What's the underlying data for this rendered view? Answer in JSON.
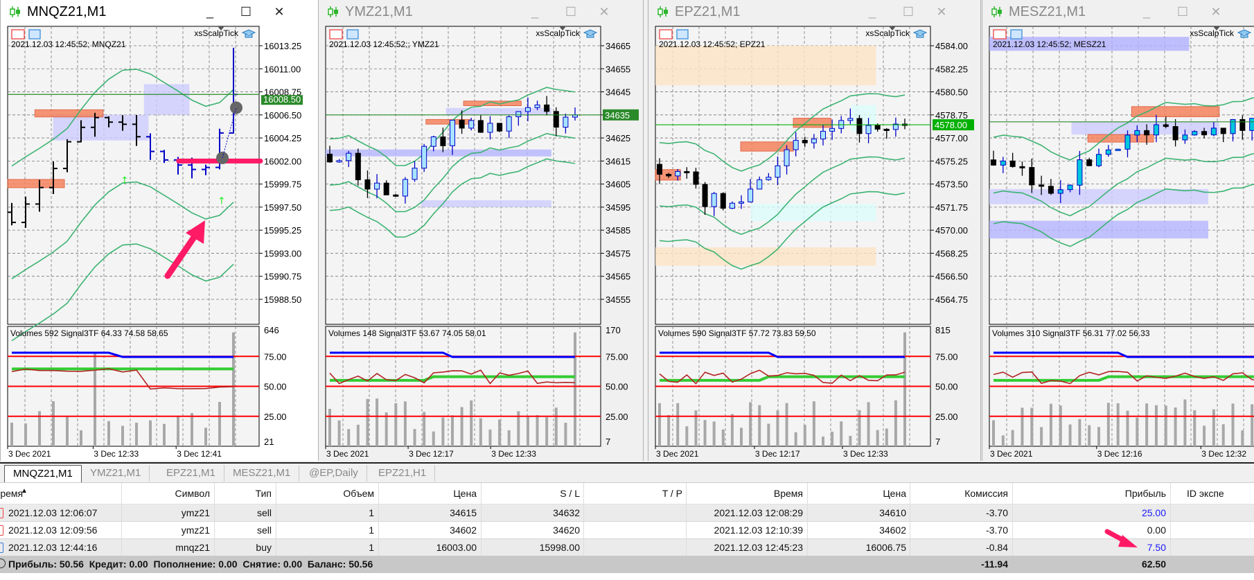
{
  "windows": [
    {
      "title": "MNQZ21,M1",
      "timestamp": "2021.12.03 12:45:52; MNQZ21",
      "indicator": "xsScalpTick",
      "price_ticks": [
        "16013.25",
        "16011.00",
        "16008.75",
        "16006.50",
        "16004.25",
        "16002.00",
        "15999.75",
        "15997.50",
        "15995.25",
        "15993.00",
        "15990.75",
        "15988.50"
      ],
      "current_price": "16008.50",
      "current_price_color": "#2a8a2a",
      "volumes_label": "Volumes 592 Signal3TF 64.33 74.58 58.65",
      "vol_ticks": [
        "646",
        "75.00",
        "50.00",
        "25.00",
        "21"
      ],
      "date_labels": [
        "3 Dec 2021",
        "3 Dec 12:33",
        "3 Dec 12:41"
      ]
    },
    {
      "title": "YMZ21,M1",
      "timestamp": "2021.12.03 12:45:52;; YMZ21",
      "indicator": "xsScalpTick",
      "price_ticks": [
        "34665",
        "34655",
        "34645",
        "34635",
        "34625",
        "34615",
        "34605",
        "34595",
        "34585",
        "34575",
        "34565",
        "34555"
      ],
      "current_price": "34635",
      "current_price_color": "#2a8a2a",
      "volumes_label": "Volumes 148 Signal3TF 53.67 74.05 58.01",
      "vol_ticks": [
        "170",
        "75.00",
        "50.00",
        "25.00",
        "7"
      ],
      "date_labels": [
        "3 Dec 2021",
        "3 Dec 12:17",
        "3 Dec 12:33"
      ]
    },
    {
      "title": "EPZ21,M1",
      "timestamp": "2021.12.03 12:45:52; EPZ21",
      "indicator": "xsScalpTick",
      "price_ticks": [
        "4584.00",
        "4582.25",
        "4580.50",
        "4578.75",
        "4577.00",
        "4575.25",
        "4573.50",
        "4571.75",
        "4570.00",
        "4568.25",
        "4566.50",
        "4564.75"
      ],
      "current_price": "4578.00",
      "current_price_color": "#00b000",
      "volumes_label": "Volumes 590 Signal3TF 57.72 73.83 59.50",
      "vol_ticks": [
        "815",
        "75.00",
        "50.00",
        "25.00",
        "7"
      ],
      "date_labels": [
        "3 Dec 2021",
        "3 Dec 12:17",
        "3 Dec 12:33"
      ]
    },
    {
      "title": "MESZ21,M1",
      "timestamp": "2021.12.03 12:45:52; MESZ21",
      "indicator": "xsScalpTick",
      "price_ticks": [],
      "current_price": "",
      "current_price_color": "#2a8a2a",
      "volumes_label": "Volumes 310 Signal3TF 56.31 77.02 56.33",
      "vol_ticks": [],
      "date_labels": [
        "3 Dec 2021",
        "3 Dec 12:16",
        "3 Dec 12:32"
      ]
    }
  ],
  "tabs": [
    "MNQZ21,M1",
    "YMZ21,M1",
    "EPZ21,M1",
    "MESZ21,M1",
    "@EP,Daily",
    "EPZ21,H1"
  ],
  "active_tab": "MNQZ21,M1",
  "table": {
    "columns": [
      "Время",
      "Символ",
      "Тип",
      "Объем",
      "Цена",
      "S / L",
      "T / P",
      "Время",
      "Цена",
      "Комиссия",
      "Прибыль",
      "ID экспе"
    ],
    "sort_indicator": "▲",
    "rows": [
      {
        "open_time": "2021.12.03 12:06:07",
        "symbol": "ymz21",
        "type": "sell",
        "volume": "1",
        "open_price": "34615",
        "sl": "34632",
        "tp": "",
        "close_time": "2021.12.03 12:08:29",
        "close_price": "34610",
        "commission": "-3.70",
        "profit": "25.00",
        "profit_color": "#1a1aff"
      },
      {
        "open_time": "2021.12.03 12:09:56",
        "symbol": "ymz21",
        "type": "sell",
        "volume": "1",
        "open_price": "34602",
        "sl": "34620",
        "tp": "",
        "close_time": "2021.12.03 12:10:39",
        "close_price": "34602",
        "commission": "-3.70",
        "profit": "0.00",
        "profit_color": "#111111"
      },
      {
        "open_time": "2021.12.03 12:44:16",
        "symbol": "mnqz21",
        "type": "buy",
        "volume": "1",
        "open_price": "16003.00",
        "sl": "15998.00",
        "tp": "",
        "close_time": "2021.12.03 12:45:23",
        "close_price": "16006.75",
        "commission": "-0.84",
        "profit": "7.50",
        "profit_color": "#1a1aff"
      }
    ],
    "summary": {
      "text": "Прибыль: 50.56  Кредит: 0.00  Пополнение: 0.00  Снятие: 0.00  Баланс: 50.56",
      "commission_total": "-11.94",
      "profit_total": "62.50"
    }
  }
}
